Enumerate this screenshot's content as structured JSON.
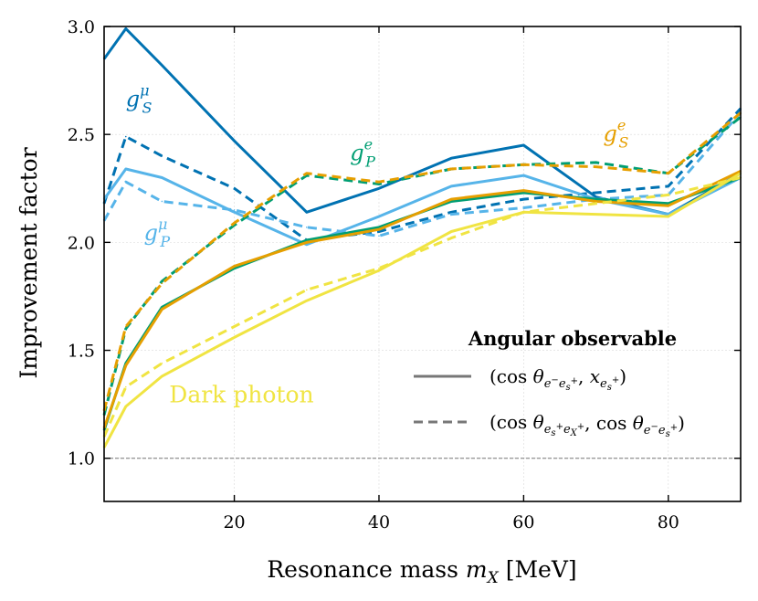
{
  "chart_data": {
    "type": "line",
    "title": "",
    "xlabel": "Resonance mass m_X [MeV]",
    "xlabel_main": "Resonance mass ",
    "xlabel_sym": "m",
    "xlabel_sub": "X",
    "xlabel_unit": " [MeV]",
    "ylabel": "Improvement factor",
    "xlim": [
      2,
      90
    ],
    "ylim": [
      0.8,
      3.0
    ],
    "xticks": [
      20,
      40,
      60,
      80
    ],
    "yticks": [
      1.0,
      1.5,
      2.0,
      2.5,
      3.0
    ],
    "xtick_labels": [
      "20",
      "40",
      "60",
      "80"
    ],
    "ytick_labels": [
      "1.0",
      "1.5",
      "2.0",
      "2.5",
      "3.0"
    ],
    "grid": true,
    "reference_line": 1.0,
    "x": [
      2,
      5,
      10,
      20,
      30,
      40,
      50,
      60,
      70,
      80,
      90
    ],
    "series": [
      {
        "name": "g_S^mu (cos, x)",
        "color": "#0072b2",
        "style": "solid",
        "values": [
          2.85,
          2.99,
          2.82,
          2.47,
          2.14,
          2.25,
          2.39,
          2.45,
          2.21,
          2.13,
          2.32
        ]
      },
      {
        "name": "g_S^mu (cos, cos)",
        "color": "#0072b2",
        "style": "dashed",
        "values": [
          2.18,
          2.49,
          2.4,
          2.25,
          2.01,
          2.05,
          2.14,
          2.2,
          2.23,
          2.26,
          2.62
        ]
      },
      {
        "name": "g_P^mu (cos, x)",
        "color": "#56b4e9",
        "style": "solid",
        "values": [
          2.2,
          2.34,
          2.3,
          2.14,
          1.99,
          2.12,
          2.26,
          2.31,
          2.2,
          2.13,
          2.3
        ]
      },
      {
        "name": "g_P^mu (cos, cos)",
        "color": "#56b4e9",
        "style": "dashed",
        "values": [
          2.1,
          2.28,
          2.19,
          2.15,
          2.07,
          2.03,
          2.13,
          2.16,
          2.2,
          2.22,
          2.6
        ]
      },
      {
        "name": "g_P^e (cos, x)",
        "color": "#009e73",
        "style": "solid",
        "values": [
          1.13,
          1.44,
          1.7,
          1.88,
          2.01,
          2.07,
          2.19,
          2.23,
          2.2,
          2.18,
          2.3
        ]
      },
      {
        "name": "g_P^e (cos, cos)",
        "color": "#009e73",
        "style": "dashed",
        "values": [
          1.2,
          1.6,
          1.82,
          2.08,
          2.31,
          2.27,
          2.34,
          2.36,
          2.37,
          2.32,
          2.58
        ]
      },
      {
        "name": "g_S^e (cos, x)",
        "color": "#e69f00",
        "style": "solid",
        "values": [
          1.14,
          1.43,
          1.69,
          1.89,
          2.0,
          2.06,
          2.2,
          2.24,
          2.19,
          2.17,
          2.33
        ]
      },
      {
        "name": "g_S^e (cos, cos)",
        "color": "#e69f00",
        "style": "dashed",
        "values": [
          1.22,
          1.61,
          1.81,
          2.09,
          2.32,
          2.28,
          2.34,
          2.36,
          2.35,
          2.32,
          2.6
        ]
      },
      {
        "name": "Dark photon (cos, x)",
        "color": "#f0e442",
        "style": "solid",
        "values": [
          1.05,
          1.24,
          1.38,
          1.56,
          1.73,
          1.87,
          2.05,
          2.14,
          2.13,
          2.12,
          2.32
        ]
      },
      {
        "name": "Dark photon (cos, cos)",
        "color": "#f0e442",
        "style": "dashed",
        "values": [
          1.1,
          1.33,
          1.44,
          1.61,
          1.78,
          1.88,
          2.02,
          2.14,
          2.18,
          2.22,
          2.3
        ]
      }
    ],
    "annotations": [
      {
        "id": "gSmu",
        "sym": "g",
        "sub": "S",
        "sup": "μ",
        "color": "#0072b2",
        "anchor": [
          5.0,
          2.63
        ]
      },
      {
        "id": "gPmu",
        "sym": "g",
        "sub": "P",
        "sup": "μ",
        "color": "#56b4e9",
        "anchor": [
          7.5,
          2.01
        ]
      },
      {
        "id": "gPe",
        "sym": "g",
        "sub": "P",
        "sup": "e",
        "color": "#009e73",
        "anchor": [
          36.0,
          2.38
        ]
      },
      {
        "id": "gSe",
        "sym": "g",
        "sub": "S",
        "sup": "e",
        "color": "#e69f00",
        "anchor": [
          71.0,
          2.47
        ]
      },
      {
        "id": "dark",
        "text": "Dark photon",
        "color": "#f0e442",
        "anchor": [
          11.0,
          1.26
        ]
      }
    ],
    "legend": {
      "title": "Angular observable",
      "placement": "lower-right",
      "entries": [
        {
          "style": "solid",
          "label": "(cos θe−es+, xes+)"
        },
        {
          "style": "dashed",
          "label": "(cos θes+eX+, cos θe−es+)"
        }
      ]
    }
  }
}
